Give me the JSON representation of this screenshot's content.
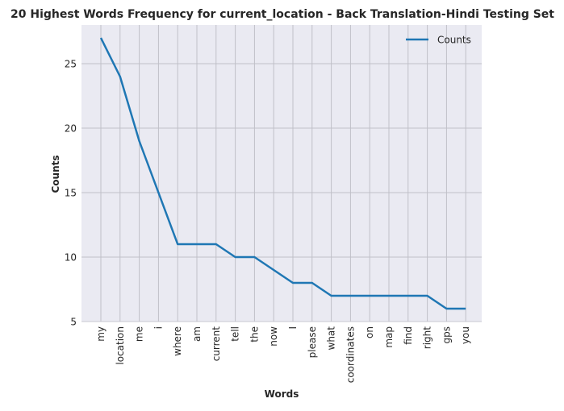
{
  "chart_data": {
    "type": "line",
    "title": "20 Highest Words Frequency for current_location - Back Translation-Hindi Testing Set",
    "xlabel": "Words",
    "ylabel": "Counts",
    "categories": [
      "my",
      "location",
      "me",
      "i",
      "where",
      "am",
      "current",
      "tell",
      "the",
      "now",
      "I",
      "please",
      "what",
      "coordinates",
      "on",
      "map",
      "find",
      "right",
      "gps",
      "you"
    ],
    "series": [
      {
        "name": "Counts",
        "color": "#1f77b4",
        "values": [
          27,
          24,
          19,
          15,
          11,
          11,
          11,
          10,
          10,
          9,
          8,
          8,
          7,
          7,
          7,
          7,
          7,
          7,
          6,
          6
        ]
      }
    ],
    "yticks": [
      5,
      10,
      15,
      20,
      25
    ],
    "ylim": [
      5,
      28
    ],
    "grid": true,
    "legend": "top-right",
    "colors": {
      "plot_bg": "#eaeaf2",
      "grid": "#c0c0c8",
      "line": "#1f77b4"
    }
  }
}
